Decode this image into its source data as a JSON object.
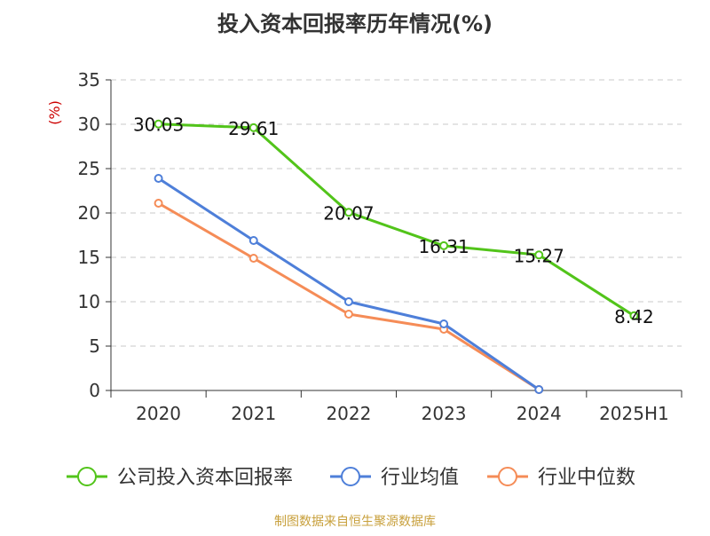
{
  "chart_data": {
    "type": "line",
    "title": "投入资本回报率历年情况(%)",
    "ylabel": "(%)",
    "xlabel": "",
    "categories": [
      "2020",
      "2021",
      "2022",
      "2023",
      "2024",
      "2025H1"
    ],
    "ylim": [
      0,
      35
    ],
    "yticks": [
      0,
      5,
      10,
      15,
      20,
      25,
      30,
      35
    ],
    "grid": true,
    "legend_position": "bottom",
    "series": [
      {
        "name": "公司投入资本回报率",
        "color": "#52c41a",
        "values": [
          30.03,
          29.61,
          20.07,
          16.31,
          15.27,
          8.42
        ],
        "labels": [
          "30.03",
          "29.61",
          "20.07",
          "16.31",
          "15.27",
          "8.42"
        ]
      },
      {
        "name": "行业均值",
        "color": "#4e7fd9",
        "values": [
          23.9,
          16.9,
          10.0,
          7.5,
          0.1,
          null
        ]
      },
      {
        "name": "行业中位数",
        "color": "#f58c57",
        "values": [
          21.1,
          14.9,
          8.6,
          6.9,
          0.1,
          null
        ]
      }
    ]
  },
  "footer": {
    "source": "制图数据来自恒生聚源数据库"
  }
}
